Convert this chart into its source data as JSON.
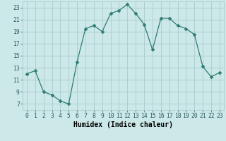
{
  "x": [
    0,
    1,
    2,
    3,
    4,
    5,
    6,
    7,
    8,
    9,
    10,
    11,
    12,
    13,
    14,
    15,
    16,
    17,
    18,
    19,
    20,
    21,
    22,
    23
  ],
  "y": [
    12.0,
    12.5,
    9.0,
    8.5,
    7.5,
    7.0,
    14.0,
    19.5,
    20.0,
    19.0,
    22.0,
    22.5,
    23.5,
    22.0,
    20.2,
    16.0,
    21.2,
    21.2,
    20.0,
    19.5,
    18.5,
    13.2,
    11.5,
    12.2
  ],
  "line_color": "#2e7d6e",
  "marker": "D",
  "marker_size": 2.5,
  "bg_color": "#cce8e8",
  "grid_color": "#aacccc",
  "xlabel": "Humidex (Indice chaleur)",
  "ylabel": "",
  "xlim": [
    -0.5,
    23.5
  ],
  "ylim": [
    6,
    24
  ],
  "yticks": [
    7,
    9,
    11,
    13,
    15,
    17,
    19,
    21,
    23
  ],
  "xticks": [
    0,
    1,
    2,
    3,
    4,
    5,
    6,
    7,
    8,
    9,
    10,
    11,
    12,
    13,
    14,
    15,
    16,
    17,
    18,
    19,
    20,
    21,
    22,
    23
  ],
  "tick_fontsize": 5.8,
  "label_fontsize": 7.0
}
